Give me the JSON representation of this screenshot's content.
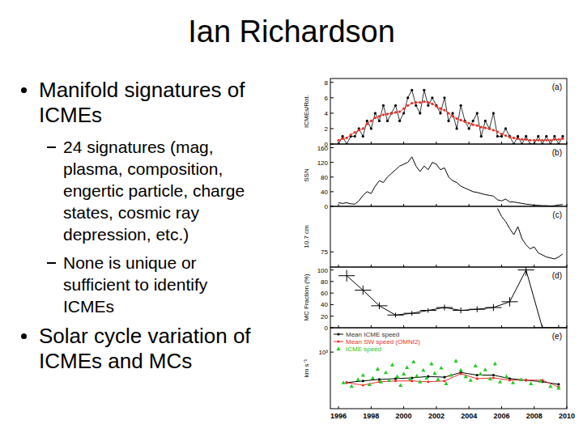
{
  "slide": {
    "title": "Ian Richardson",
    "bullets": [
      {
        "text": "Manifold signatures of ICMEs",
        "sub": [
          "24 signatures (mag, plasma, composition, engertic particle, charge states, cosmic ray depression, etc.)",
          "None is unique or sufficient to identify ICMEs"
        ]
      },
      {
        "text": "Solar cycle variation of ICMEs and MCs"
      }
    ]
  },
  "chart_data": [
    {
      "type": "line",
      "title": "(a)",
      "ylabel": "ICMEs/Rot.",
      "x": [
        1996,
        1996.25,
        1996.5,
        1996.75,
        1997,
        1997.25,
        1997.5,
        1997.75,
        1998,
        1998.25,
        1998.5,
        1998.75,
        1999,
        1999.25,
        1999.5,
        1999.75,
        2000,
        2000.25,
        2000.5,
        2000.75,
        2001,
        2001.25,
        2001.5,
        2001.75,
        2002,
        2002.25,
        2002.5,
        2002.75,
        2003,
        2003.25,
        2003.5,
        2003.75,
        2004,
        2004.25,
        2004.5,
        2004.75,
        2005,
        2005.25,
        2005.5,
        2005.75,
        2006,
        2006.25,
        2006.5,
        2006.75,
        2007,
        2007.25,
        2007.5,
        2007.75,
        2008,
        2008.25,
        2008.5,
        2008.75,
        2009,
        2009.25,
        2009.5,
        2009.75
      ],
      "series": [
        {
          "color": "#000000",
          "marker": "circle",
          "values": [
            0,
            1,
            0,
            1,
            1,
            2,
            1,
            3,
            2,
            4,
            3,
            5,
            3,
            4,
            5,
            3,
            4,
            6,
            7,
            5,
            4,
            7,
            5,
            6,
            5,
            4,
            6,
            3,
            4,
            2,
            5,
            3,
            2,
            3,
            4,
            1,
            3,
            2,
            4,
            1,
            1,
            2,
            1,
            0,
            1,
            0,
            1,
            0,
            0,
            1,
            0,
            1,
            0,
            1,
            0,
            1
          ]
        },
        {
          "color": "#e8322a",
          "marker": "circle",
          "values": [
            0.5,
            0.7,
            0.8,
            1.2,
            1.5,
            1.8,
            2.0,
            2.6,
            3.0,
            3.4,
            3.6,
            3.8,
            3.9,
            4.0,
            4.1,
            4.2,
            4.6,
            5.0,
            5.3,
            5.4,
            5.4,
            5.5,
            5.4,
            5.2,
            4.9,
            4.6,
            4.4,
            4.0,
            3.6,
            3.3,
            3.1,
            2.9,
            2.7,
            2.5,
            2.4,
            2.2,
            2.1,
            2.0,
            1.8,
            1.6,
            1.3,
            1.1,
            0.9,
            0.8,
            0.7,
            0.6,
            0.6,
            0.5,
            0.5,
            0.5,
            0.5,
            0.5,
            0.5,
            0.6,
            0.6,
            0.7
          ]
        }
      ],
      "xlim": [
        1995.5,
        2010
      ],
      "xticks": [
        1996,
        1998,
        2000,
        2002,
        2004,
        2006,
        2008,
        2010
      ],
      "ylim": [
        0,
        8.5
      ],
      "yticks": [
        0,
        2,
        4,
        6,
        8
      ],
      "tick_labels": "y"
    },
    {
      "type": "line",
      "title": "(b)",
      "ylabel": "SSN",
      "x": [
        1996,
        1996.25,
        1996.5,
        1996.75,
        1997,
        1997.25,
        1997.5,
        1997.75,
        1998,
        1998.25,
        1998.5,
        1998.75,
        1999,
        1999.25,
        1999.5,
        1999.75,
        2000,
        2000.25,
        2000.5,
        2000.75,
        2001,
        2001.25,
        2001.5,
        2001.75,
        2002,
        2002.25,
        2002.5,
        2002.75,
        2003,
        2003.25,
        2003.5,
        2003.75,
        2004,
        2004.25,
        2004.5,
        2004.75,
        2005,
        2005.25,
        2005.5,
        2005.75,
        2006,
        2006.25,
        2006.5,
        2006.75,
        2007,
        2007.25,
        2007.5,
        2007.75,
        2008,
        2008.25,
        2008.5,
        2008.75,
        2009,
        2009.25,
        2009.5,
        2009.75
      ],
      "series": [
        {
          "color": "#000000",
          "values": [
            10,
            8,
            10,
            7,
            6,
            15,
            30,
            40,
            35,
            55,
            70,
            65,
            80,
            90,
            100,
            110,
            115,
            120,
            135,
            110,
            95,
            110,
            100,
            120,
            115,
            100,
            105,
            80,
            70,
            65,
            55,
            50,
            45,
            40,
            38,
            35,
            32,
            30,
            28,
            18,
            15,
            20,
            12,
            12,
            10,
            8,
            6,
            5,
            3,
            3,
            2,
            2,
            1,
            2,
            4,
            5
          ]
        }
      ],
      "xlim": [
        1995.5,
        2010
      ],
      "xticks": [
        1996,
        1998,
        2000,
        2002,
        2004,
        2006,
        2008,
        2010
      ],
      "ylim": [
        0,
        170
      ],
      "yticks": [
        0,
        40,
        80,
        120,
        160
      ],
      "tick_labels": "y"
    },
    {
      "type": "line",
      "title": "(c)",
      "ylabel": "10.7 cm",
      "x": [
        2005.75,
        2006,
        2006.25,
        2006.5,
        2006.75,
        2007,
        2007.25,
        2007.5,
        2007.75,
        2008,
        2008.25,
        2008.5,
        2008.75,
        2009,
        2009.25,
        2009.5,
        2009.75
      ],
      "series": [
        {
          "color": "#000000",
          "values": [
            118,
            110,
            105,
            98,
            92,
            100,
            88,
            82,
            78,
            80,
            74,
            72,
            70,
            69,
            68,
            70,
            73
          ]
        }
      ],
      "xlim": [
        1995.5,
        2010
      ],
      "xticks": [
        1996,
        1998,
        2000,
        2002,
        2004,
        2006,
        2008,
        2010
      ],
      "ylim": [
        60,
        120
      ],
      "yticks": [
        75
      ],
      "tick_labels": "y"
    },
    {
      "type": "line",
      "title": "(d)",
      "ylabel": "MC Fraction (%)",
      "x": [
        1996.5,
        1997.5,
        1998.5,
        1999.5,
        2000.5,
        2001.5,
        2002.5,
        2003.5,
        2004.5,
        2005.5,
        2006.5,
        2007.5,
        2008.5,
        2009.5
      ],
      "series": [
        {
          "color": "#000000",
          "values": [
            90,
            65,
            38,
            22,
            25,
            30,
            35,
            30,
            32,
            35,
            45,
            100,
            0,
            0
          ],
          "errors": [
            10,
            8,
            6,
            4,
            4,
            4,
            5,
            5,
            5,
            6,
            8,
            10,
            5,
            5
          ],
          "x_errors": [
            0.5,
            0.5,
            0.5,
            0.5,
            0.5,
            0.5,
            0.5,
            0.5,
            0.5,
            0.5,
            0.5,
            0.5,
            0.5,
            0.5
          ]
        }
      ],
      "xlim": [
        1995.5,
        2010
      ],
      "xticks": [
        1996,
        1998,
        2000,
        2002,
        2004,
        2006,
        2008,
        2010
      ],
      "ylim": [
        0,
        105
      ],
      "yticks": [
        0,
        20,
        40,
        60,
        80,
        100
      ],
      "tick_labels": "y"
    },
    {
      "type": "line",
      "title": "(e)",
      "ylabel": "km s⁻¹",
      "legend": "upper left",
      "log": "y",
      "series": [
        {
          "name": "Mean ICME speed",
          "color": "#000000",
          "marker": "circle",
          "x": [
            1996.5,
            1997.5,
            1998.5,
            1999.5,
            2000.5,
            2001.5,
            2002.5,
            2003.5,
            2004.5,
            2005.5,
            2006.5,
            2007.5,
            2008.5,
            2009.5
          ],
          "values": [
            420,
            440,
            460,
            470,
            480,
            500,
            490,
            560,
            520,
            520,
            470,
            450,
            430,
            400
          ]
        },
        {
          "name": "Mean SW speed (OMNI2)",
          "color": "#e8322a",
          "marker": "circle",
          "x": [
            1996.5,
            1997.5,
            1998.5,
            1999.5,
            2000.5,
            2001.5,
            2002.5,
            2003.5,
            2004.5,
            2005.5,
            2006.5,
            2007.5,
            2008.5,
            2009.5
          ],
          "values": [
            420,
            390,
            430,
            440,
            440,
            430,
            440,
            540,
            470,
            480,
            450,
            450,
            450,
            370
          ]
        },
        {
          "name": "ICME speed",
          "type": "scatter",
          "color": "#22cc22",
          "marker": "triangle",
          "x": [
            1996.3,
            1996.8,
            1997.2,
            1997.5,
            1997.9,
            1998.1,
            1998.4,
            1998.6,
            1998.9,
            1999.1,
            1999.3,
            1999.6,
            1999.8,
            2000.0,
            2000.2,
            2000.4,
            2000.6,
            2000.8,
            2001.0,
            2001.2,
            2001.4,
            2001.7,
            2001.9,
            2002.1,
            2002.3,
            2002.6,
            2002.9,
            2003.2,
            2003.5,
            2003.8,
            2004.1,
            2004.4,
            2004.7,
            2005.0,
            2005.3,
            2005.6,
            2005.9,
            2006.3,
            2006.7,
            2007.2,
            2007.8,
            2008.4,
            2009.0,
            2009.5
          ],
          "values": [
            420,
            380,
            460,
            520,
            400,
            480,
            620,
            430,
            560,
            450,
            700,
            500,
            390,
            540,
            650,
            470,
            760,
            510,
            430,
            600,
            480,
            720,
            550,
            460,
            640,
            410,
            520,
            780,
            600,
            500,
            450,
            680,
            540,
            610,
            470,
            720,
            430,
            500,
            420,
            460,
            410,
            440,
            380,
            360
          ]
        }
      ],
      "xlim": [
        1995.5,
        2010
      ],
      "xticks": [
        1996,
        1998,
        2000,
        2002,
        2004,
        2006,
        2008,
        2010
      ],
      "ylim": [
        200,
        2000
      ],
      "yticks": [
        {
          "value": 1000,
          "label": "10³"
        }
      ]
    }
  ]
}
